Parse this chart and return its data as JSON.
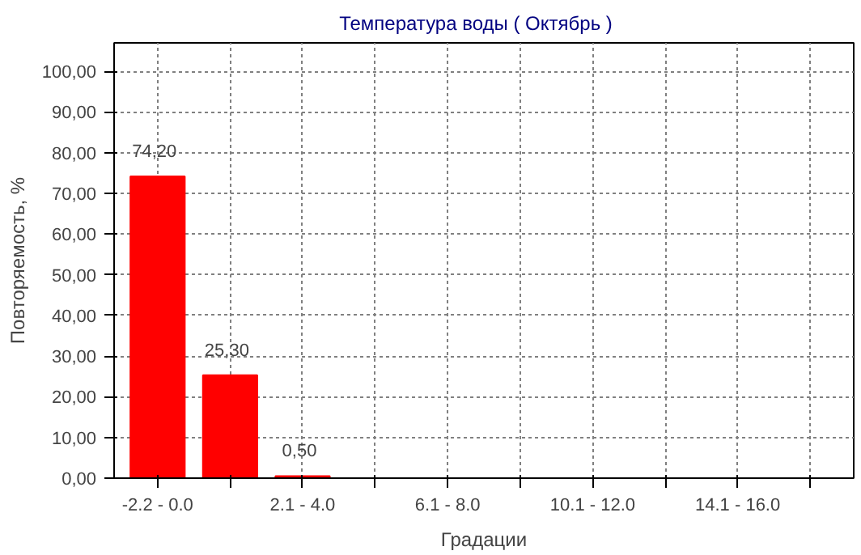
{
  "chart_data": {
    "type": "bar",
    "title": "Температура воды    ( Октябрь )",
    "xlabel": "Градации",
    "ylabel": "Повторяемость, %",
    "categories": [
      "-2.2 - 0.0",
      null,
      "2.1 - 4.0",
      null,
      "6.1 - 8.0",
      null,
      "10.1 - 12.0",
      null,
      "14.1 - 16.0",
      null
    ],
    "values": [
      74.2,
      25.3,
      0.5,
      0,
      0,
      0,
      0,
      0,
      0,
      0
    ],
    "value_labels": [
      "74,20",
      "25,30",
      "0,50",
      null,
      null,
      null,
      null,
      null,
      null,
      null
    ],
    "color": "#ff0000",
    "ylim": [
      0,
      107
    ],
    "yticks": [
      {
        "value": 0,
        "label": "0,00"
      },
      {
        "value": 10,
        "label": "10,00"
      },
      {
        "value": 20,
        "label": "20,00"
      },
      {
        "value": 30,
        "label": "30,00"
      },
      {
        "value": 40,
        "label": "40,00"
      },
      {
        "value": 50,
        "label": "50,00"
      },
      {
        "value": 60,
        "label": "60,00"
      },
      {
        "value": 70,
        "label": "70,00"
      },
      {
        "value": 80,
        "label": "80,00"
      },
      {
        "value": 90,
        "label": "90,00"
      },
      {
        "value": 100,
        "label": "100,00"
      }
    ],
    "grid": true
  }
}
